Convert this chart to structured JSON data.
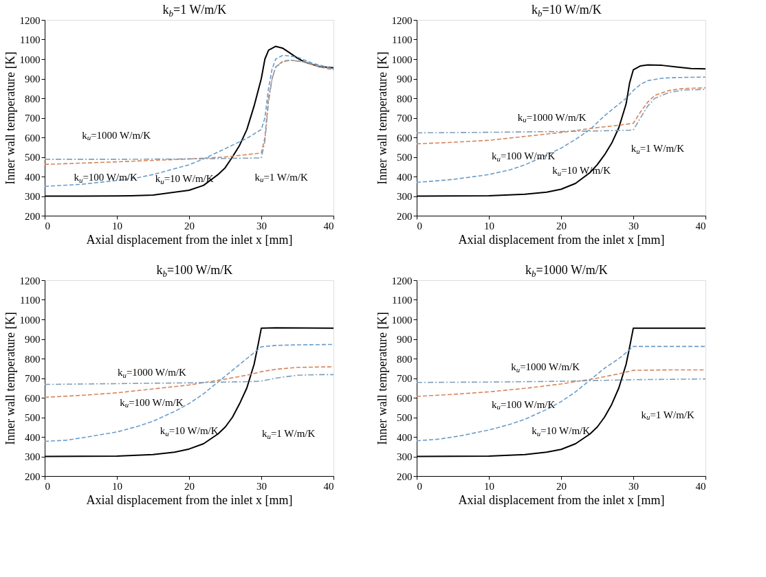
{
  "chart_data": [
    {
      "type": "line",
      "title": "k$_{b}$=1 W/m/K",
      "xlabel": "Axial displacement from the inlet x [mm]",
      "ylabel": "Inner wall temperature [K]",
      "xlim": [
        0,
        40
      ],
      "xticks": [
        0,
        10,
        20,
        30,
        40
      ],
      "ylim": [
        200,
        1200
      ],
      "yticks": [
        200,
        300,
        400,
        500,
        600,
        700,
        800,
        900,
        1000,
        1100,
        1200
      ],
      "grid": false,
      "series": [
        {
          "color": "#000000",
          "line_style": "solid",
          "x": [
            0,
            5,
            10,
            12,
            15,
            20,
            22,
            24,
            25,
            26,
            27,
            28,
            29,
            30,
            30.5,
            31,
            32,
            33,
            34,
            35,
            36,
            38,
            40
          ],
          "values": [
            300,
            300,
            301,
            302,
            305,
            330,
            355,
            410,
            445,
            500,
            560,
            640,
            760,
            900,
            1000,
            1045,
            1065,
            1055,
            1030,
            1005,
            985,
            962,
            955
          ]
        },
        {
          "color": "#6a9bc8",
          "line_style": "dashed",
          "x": [
            0,
            5,
            10,
            13,
            15,
            18,
            20,
            22,
            24,
            26,
            28,
            30,
            30.5,
            31,
            31.5,
            32,
            33,
            35,
            37,
            40
          ],
          "values": [
            350,
            360,
            380,
            395,
            410,
            440,
            460,
            490,
            525,
            560,
            595,
            640,
            700,
            850,
            950,
            1000,
            1020,
            1010,
            980,
            950
          ]
        },
        {
          "color": "#d4845a",
          "line_style": "dashed",
          "x": [
            0,
            10,
            20,
            25,
            30,
            30.5,
            31,
            31.5,
            32,
            33,
            34,
            36,
            38,
            40
          ],
          "values": [
            462,
            475,
            490,
            500,
            520,
            600,
            800,
            900,
            960,
            990,
            995,
            985,
            960,
            945
          ]
        },
        {
          "color": "#7f9fb8",
          "line_style": "dotted",
          "x": [
            0,
            10,
            20,
            30,
            30.5,
            31,
            31.5,
            32,
            33,
            34,
            36,
            38,
            40
          ],
          "values": [
            488,
            488,
            490,
            495,
            580,
            780,
            900,
            960,
            985,
            995,
            985,
            965,
            950
          ]
        }
      ],
      "annotations": [
        {
          "text": "k$_{u}$=1 W/m/K",
          "x": 25,
          "y": 440
        },
        {
          "text": "k$_{u}$=10 W/m/K",
          "x": 13,
          "y": 395
        },
        {
          "text": "k$_{u}$=100 W/m/K",
          "x": 4,
          "y": 465
        },
        {
          "text": "k$_{u}$=1000 W/m/K",
          "x": 5,
          "y": 488
        }
      ]
    },
    {
      "type": "line",
      "title": "k$_{b}$=10 W/m/K",
      "xlabel": "Axial displacement from the inlet x [mm]",
      "ylabel": "Inner wall temperature [K]",
      "xlim": [
        0,
        40
      ],
      "xticks": [
        0,
        10,
        20,
        30,
        40
      ],
      "ylim": [
        200,
        1200
      ],
      "yticks": [
        200,
        300,
        400,
        500,
        600,
        700,
        800,
        900,
        1000,
        1100,
        1200
      ],
      "grid": false,
      "series": [
        {
          "color": "#000000",
          "line_style": "solid",
          "x": [
            0,
            10,
            15,
            18,
            20,
            22,
            24,
            25,
            26,
            27,
            28,
            29,
            29.5,
            30,
            31,
            32,
            34,
            36,
            38,
            40
          ],
          "values": [
            300,
            302,
            310,
            320,
            335,
            365,
            420,
            460,
            510,
            570,
            650,
            770,
            880,
            945,
            965,
            970,
            968,
            960,
            952,
            950
          ]
        },
        {
          "color": "#6a9bc8",
          "line_style": "dashed",
          "x": [
            0,
            5,
            10,
            13,
            15,
            18,
            20,
            22,
            24,
            26,
            28,
            29,
            30,
            31,
            32,
            34,
            36,
            40
          ],
          "values": [
            370,
            385,
            410,
            435,
            460,
            510,
            545,
            590,
            640,
            710,
            770,
            800,
            840,
            870,
            890,
            902,
            906,
            908
          ]
        },
        {
          "color": "#d4845a",
          "line_style": "dashed",
          "x": [
            0,
            5,
            10,
            15,
            20,
            25,
            28,
            30,
            31,
            32,
            33,
            35,
            37,
            40
          ],
          "values": [
            567,
            575,
            585,
            605,
            625,
            650,
            662,
            672,
            730,
            780,
            815,
            840,
            850,
            853
          ]
        },
        {
          "color": "#7f9fb8",
          "line_style": "dotted",
          "x": [
            0,
            10,
            20,
            25,
            30,
            31,
            32,
            33,
            35,
            37,
            40
          ],
          "values": [
            623,
            626,
            630,
            633,
            637,
            700,
            760,
            800,
            830,
            842,
            845
          ]
        }
      ],
      "annotations": [
        {
          "text": "k$_{u}$=1 W/m/K",
          "x": 27.5,
          "y": 600
        },
        {
          "text": "k$_{u}$=10 W/m/K",
          "x": 16,
          "y": 480
        },
        {
          "text": "k$_{u}$=100 W/m/K",
          "x": 7,
          "y": 575
        },
        {
          "text": "k$_{u}$=1000 W/m/K",
          "x": 10,
          "y": 626
        }
      ]
    },
    {
      "type": "line",
      "title": "k$_{b}$=100 W/m/K",
      "xlabel": "Axial displacement from the inlet x [mm]",
      "ylabel": "Inner wall temperature [K]",
      "xlim": [
        0,
        40
      ],
      "xticks": [
        0,
        10,
        20,
        30,
        40
      ],
      "ylim": [
        200,
        1200
      ],
      "yticks": [
        200,
        300,
        400,
        500,
        600,
        700,
        800,
        900,
        1000,
        1100,
        1200
      ],
      "grid": false,
      "series": [
        {
          "color": "#000000",
          "line_style": "solid",
          "x": [
            0,
            10,
            15,
            18,
            20,
            22,
            24,
            25,
            26,
            27,
            28,
            29,
            29.5,
            30,
            32,
            40
          ],
          "values": [
            300,
            302,
            310,
            322,
            338,
            365,
            415,
            450,
            500,
            570,
            650,
            770,
            860,
            955,
            957,
            955
          ]
        },
        {
          "color": "#6a9bc8",
          "line_style": "dashed",
          "x": [
            0,
            3,
            6,
            10,
            13,
            15,
            18,
            20,
            22,
            24,
            26,
            28,
            29,
            30,
            32,
            35,
            40
          ],
          "values": [
            377,
            383,
            400,
            425,
            455,
            480,
            530,
            570,
            620,
            680,
            740,
            800,
            830,
            860,
            867,
            870,
            872
          ]
        },
        {
          "color": "#d4845a",
          "line_style": "dashed",
          "x": [
            0,
            5,
            10,
            15,
            20,
            25,
            28,
            30,
            32,
            35,
            40
          ],
          "values": [
            602,
            612,
            625,
            645,
            665,
            695,
            715,
            733,
            745,
            755,
            758
          ]
        },
        {
          "color": "#7f9fb8",
          "line_style": "dotted",
          "x": [
            0,
            10,
            20,
            25,
            29,
            30,
            32,
            35,
            38,
            40
          ],
          "values": [
            668,
            672,
            676,
            680,
            683,
            685,
            700,
            715,
            718,
            718
          ]
        }
      ],
      "annotations": [
        {
          "text": "k$_{u}$=1 W/m/K",
          "x": 26,
          "y": 480
        },
        {
          "text": "k$_{u}$=10 W/m/K",
          "x": 17,
          "y": 515
        },
        {
          "text": "k$_{u}$=100 W/m/K",
          "x": 7.5,
          "y": 612
        },
        {
          "text": "k$_{u}$=1000 W/m/K",
          "x": 8.5,
          "y": 672
        }
      ]
    },
    {
      "type": "line",
      "title": "k$_{b}$=1000 W/m/K",
      "xlabel": "Axial displacement from the inlet x [mm]",
      "ylabel": "Inner wall temperature [K]",
      "xlim": [
        0,
        40
      ],
      "xticks": [
        0,
        10,
        20,
        30,
        40
      ],
      "ylim": [
        200,
        1200
      ],
      "yticks": [
        200,
        300,
        400,
        500,
        600,
        700,
        800,
        900,
        1000,
        1100,
        1200
      ],
      "grid": false,
      "series": [
        {
          "color": "#000000",
          "line_style": "solid",
          "x": [
            0,
            10,
            15,
            18,
            20,
            22,
            24,
            25,
            26,
            27,
            28,
            29,
            29.5,
            30,
            40
          ],
          "values": [
            300,
            302,
            310,
            322,
            336,
            365,
            415,
            450,
            500,
            565,
            650,
            770,
            860,
            955,
            955
          ]
        },
        {
          "color": "#6a9bc8",
          "line_style": "dashed",
          "x": [
            0,
            3,
            6,
            10,
            13,
            15,
            18,
            20,
            22,
            24,
            26,
            28,
            29,
            30,
            40
          ],
          "values": [
            380,
            388,
            405,
            435,
            465,
            490,
            540,
            580,
            630,
            690,
            750,
            800,
            830,
            862,
            862
          ]
        },
        {
          "color": "#d4845a",
          "line_style": "dashed",
          "x": [
            0,
            5,
            10,
            15,
            20,
            25,
            28,
            30,
            35,
            40
          ],
          "values": [
            607,
            617,
            630,
            648,
            670,
            700,
            722,
            740,
            742,
            742
          ]
        },
        {
          "color": "#7f9fb8",
          "line_style": "dotted",
          "x": [
            0,
            10,
            20,
            25,
            30,
            40
          ],
          "values": [
            678,
            680,
            684,
            688,
            692,
            696
          ]
        }
      ],
      "annotations": [
        {
          "text": "k$_{u}$=1 W/m/K",
          "x": 27,
          "y": 565
        },
        {
          "text": "k$_{u}$=10 W/m/K",
          "x": 16,
          "y": 490
        },
        {
          "text": "k$_{u}$=100 W/m/K",
          "x": 7,
          "y": 622
        },
        {
          "text": "k$_{u}$=1000 W/m/K",
          "x": 11,
          "y": 680
        }
      ]
    }
  ]
}
